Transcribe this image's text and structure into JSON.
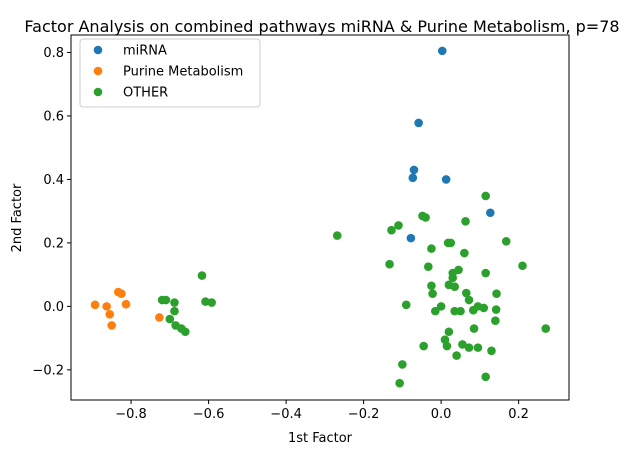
{
  "chart_data": {
    "type": "scatter",
    "title": "Factor Analysis on combined pathways miRNA & Purine Metabolism, p=78",
    "xlabel": "1st Factor",
    "ylabel": "2nd Factor",
    "xlim": [
      -0.955,
      0.33
    ],
    "ylim": [
      -0.295,
      0.855
    ],
    "xticks": [
      -0.8,
      -0.6,
      -0.4,
      -0.2,
      0.0,
      0.2
    ],
    "xtick_labels": [
      "−0.8",
      "−0.6",
      "−0.4",
      "−0.2",
      "0.0",
      "0.2"
    ],
    "yticks": [
      -0.2,
      0.0,
      0.2,
      0.4,
      0.6,
      0.8
    ],
    "ytick_labels": [
      "−0.2",
      "0.0",
      "0.2",
      "0.4",
      "0.6",
      "0.8"
    ],
    "grid": false,
    "legend_position": "upper-left",
    "series": [
      {
        "name": "miRNA",
        "color": "#1f77b4",
        "points": [
          [
            0.003,
            0.805
          ],
          [
            -0.058,
            0.578
          ],
          [
            -0.07,
            0.43
          ],
          [
            -0.073,
            0.405
          ],
          [
            0.013,
            0.4
          ],
          [
            0.127,
            0.295
          ],
          [
            -0.078,
            0.215
          ]
        ]
      },
      {
        "name": "Purine Metabolism",
        "color": "#ff7f0e",
        "points": [
          [
            -0.893,
            0.005
          ],
          [
            -0.863,
            0.0
          ],
          [
            -0.833,
            0.045
          ],
          [
            -0.825,
            0.04
          ],
          [
            -0.813,
            0.007
          ],
          [
            -0.855,
            -0.025
          ],
          [
            -0.85,
            -0.06
          ],
          [
            -0.727,
            -0.035
          ]
        ]
      },
      {
        "name": "OTHER",
        "color": "#2ca02c",
        "points": [
          [
            -0.72,
            0.02
          ],
          [
            -0.71,
            0.02
          ],
          [
            -0.688,
            0.012
          ],
          [
            -0.7,
            -0.04
          ],
          [
            -0.688,
            -0.015
          ],
          [
            -0.685,
            -0.06
          ],
          [
            -0.67,
            -0.07
          ],
          [
            -0.66,
            -0.08
          ],
          [
            -0.617,
            0.097
          ],
          [
            -0.608,
            0.015
          ],
          [
            -0.592,
            0.012
          ],
          [
            -0.268,
            0.223
          ],
          [
            -0.128,
            0.24
          ],
          [
            -0.11,
            0.255
          ],
          [
            -0.133,
            0.133
          ],
          [
            -0.09,
            0.005
          ],
          [
            -0.048,
            0.285
          ],
          [
            -0.04,
            0.28
          ],
          [
            -0.025,
            0.182
          ],
          [
            -0.033,
            0.125
          ],
          [
            0.018,
            0.2
          ],
          [
            0.025,
            0.2
          ],
          [
            0.063,
            0.268
          ],
          [
            0.115,
            0.348
          ],
          [
            0.168,
            0.205
          ],
          [
            0.21,
            0.128
          ],
          [
            0.06,
            0.168
          ],
          [
            -0.025,
            0.065
          ],
          [
            -0.022,
            0.04
          ],
          [
            0.0,
            0.0
          ],
          [
            -0.015,
            -0.015
          ],
          [
            0.02,
            0.068
          ],
          [
            0.03,
            0.105
          ],
          [
            0.045,
            0.115
          ],
          [
            0.03,
            0.09
          ],
          [
            0.035,
            0.062
          ],
          [
            0.115,
            0.105
          ],
          [
            0.065,
            0.042
          ],
          [
            0.072,
            0.02
          ],
          [
            0.095,
            0.0
          ],
          [
            0.143,
            0.04
          ],
          [
            0.035,
            -0.015
          ],
          [
            0.05,
            -0.015
          ],
          [
            0.083,
            -0.012
          ],
          [
            0.11,
            -0.005
          ],
          [
            0.142,
            -0.01
          ],
          [
            0.14,
            -0.045
          ],
          [
            0.085,
            -0.07
          ],
          [
            0.02,
            -0.08
          ],
          [
            0.01,
            -0.105
          ],
          [
            -0.045,
            -0.125
          ],
          [
            0.015,
            -0.125
          ],
          [
            0.04,
            -0.155
          ],
          [
            0.055,
            -0.12
          ],
          [
            0.072,
            -0.13
          ],
          [
            0.095,
            -0.13
          ],
          [
            0.13,
            -0.14
          ],
          [
            0.27,
            -0.07
          ],
          [
            -0.1,
            -0.183
          ],
          [
            -0.107,
            -0.242
          ],
          [
            0.115,
            -0.222
          ]
        ]
      }
    ]
  }
}
